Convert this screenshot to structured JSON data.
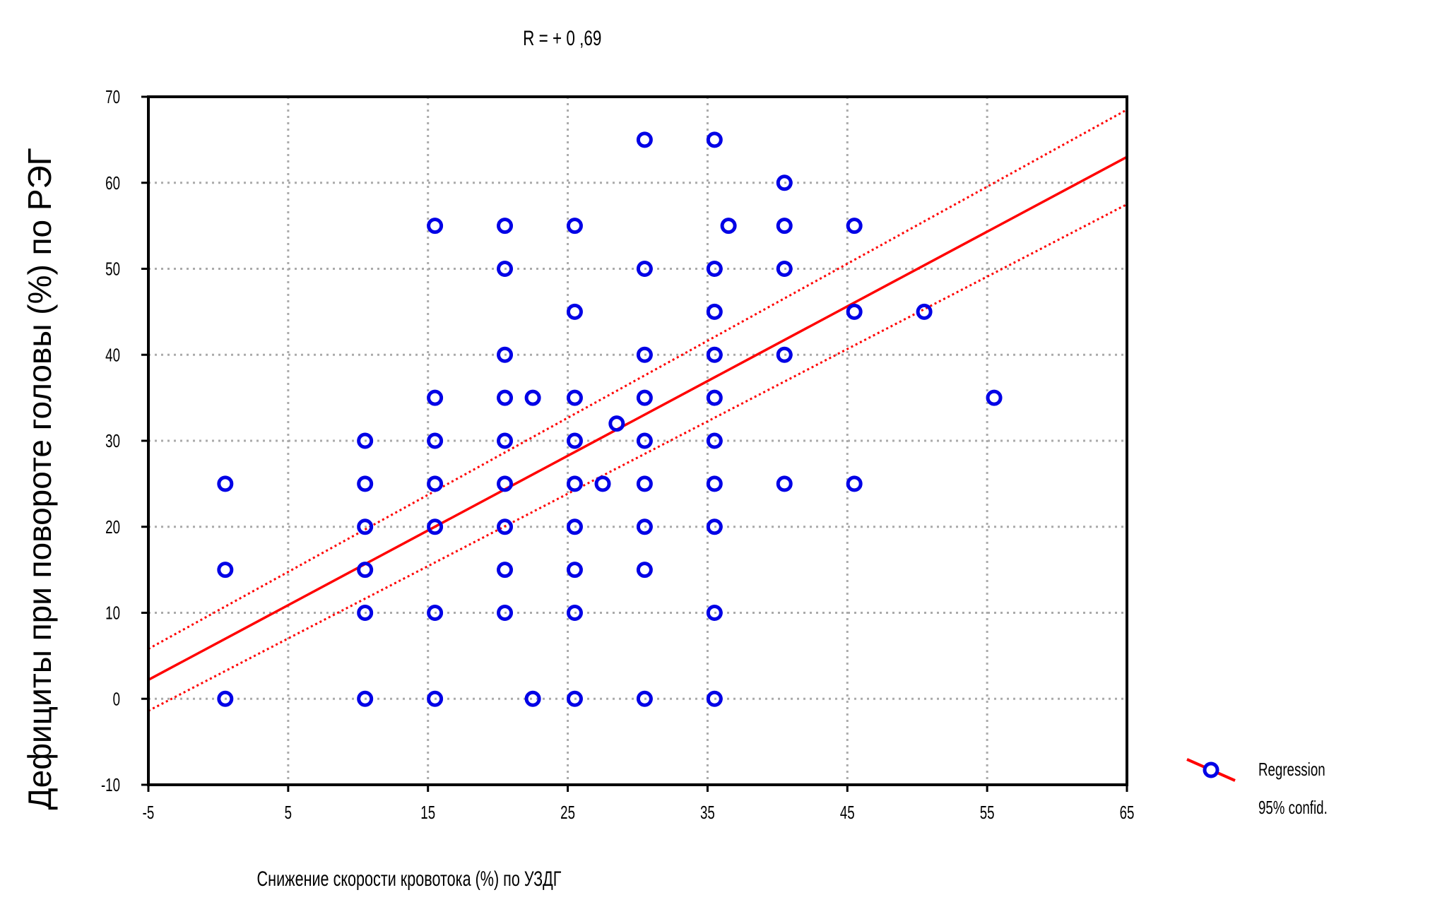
{
  "chart_data": {
    "type": "scatter",
    "title": "R = + 0 ,69",
    "xlabel": "Снижение скорости кровотока (%) по УЗДГ",
    "ylabel": "Дефициты при повороте головы (%) по РЭГ",
    "xlim": [
      -5,
      65
    ],
    "ylim": [
      -10,
      70
    ],
    "xticks": [
      -5,
      5,
      15,
      25,
      35,
      45,
      55,
      65
    ],
    "yticks": [
      -10,
      0,
      10,
      20,
      30,
      40,
      50,
      60,
      70
    ],
    "x_tick_labels": [
      "-5",
      "5",
      "15",
      "25",
      "35",
      "45",
      "55",
      "65"
    ],
    "y_tick_labels": [
      "-10",
      "0",
      "10",
      "20",
      "30",
      "40",
      "50",
      "60",
      "70"
    ],
    "grid": true,
    "legend": [
      "Regression",
      "95% confid."
    ],
    "legend_position": "right",
    "colors": {
      "points": "#0000e6",
      "regression": "#ff0000",
      "confidence": "#ff0000"
    },
    "points": [
      [
        0,
        0
      ],
      [
        0,
        15
      ],
      [
        0,
        25
      ],
      [
        10,
        0
      ],
      [
        10,
        10
      ],
      [
        10,
        15
      ],
      [
        10,
        20
      ],
      [
        10,
        25
      ],
      [
        10,
        30
      ],
      [
        15,
        0
      ],
      [
        15,
        10
      ],
      [
        15,
        20
      ],
      [
        15,
        25
      ],
      [
        15,
        30
      ],
      [
        15,
        35
      ],
      [
        15,
        55
      ],
      [
        20,
        10
      ],
      [
        20,
        15
      ],
      [
        20,
        20
      ],
      [
        20,
        25
      ],
      [
        20,
        30
      ],
      [
        20,
        35
      ],
      [
        20,
        40
      ],
      [
        20,
        50
      ],
      [
        20,
        55
      ],
      [
        22,
        0
      ],
      [
        22,
        35
      ],
      [
        25,
        0
      ],
      [
        25,
        10
      ],
      [
        25,
        15
      ],
      [
        25,
        20
      ],
      [
        25,
        25
      ],
      [
        25,
        30
      ],
      [
        25,
        35
      ],
      [
        25,
        45
      ],
      [
        25,
        55
      ],
      [
        27,
        25
      ],
      [
        28,
        32
      ],
      [
        30,
        0
      ],
      [
        30,
        15
      ],
      [
        30,
        20
      ],
      [
        30,
        25
      ],
      [
        30,
        30
      ],
      [
        30,
        35
      ],
      [
        30,
        40
      ],
      [
        30,
        50
      ],
      [
        30,
        65
      ],
      [
        35,
        0
      ],
      [
        35,
        10
      ],
      [
        35,
        20
      ],
      [
        35,
        25
      ],
      [
        35,
        30
      ],
      [
        35,
        35
      ],
      [
        35,
        40
      ],
      [
        35,
        45
      ],
      [
        35,
        50
      ],
      [
        35,
        65
      ],
      [
        36,
        55
      ],
      [
        40,
        25
      ],
      [
        40,
        40
      ],
      [
        40,
        50
      ],
      [
        40,
        55
      ],
      [
        40,
        60
      ],
      [
        45,
        25
      ],
      [
        45,
        45
      ],
      [
        45,
        55
      ],
      [
        50,
        45
      ],
      [
        55,
        35
      ]
    ],
    "regression": {
      "x": [
        -5,
        65
      ],
      "y": [
        2.2,
        63
      ]
    },
    "ci_upper": {
      "x": [
        -5,
        65
      ],
      "y": [
        5.8,
        68.5
      ]
    },
    "ci_lower": {
      "x": [
        -5,
        65
      ],
      "y": [
        -1.4,
        57.5
      ]
    }
  }
}
